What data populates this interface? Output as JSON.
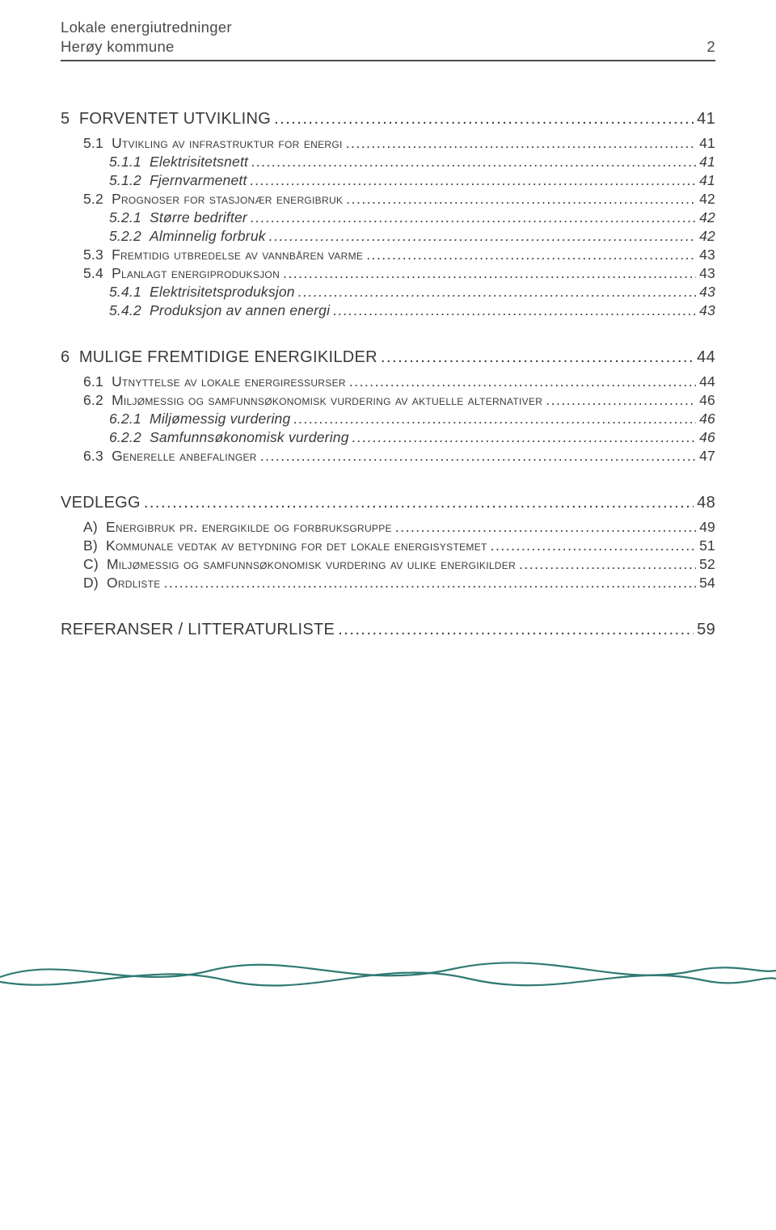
{
  "header": {
    "line1": "Lokale energiutredninger",
    "line2_left": "Herøy kommune",
    "line2_right": "2"
  },
  "colors": {
    "text": "#3a3a3a",
    "rule": "#4a4a4a",
    "wave": "#2f7a73",
    "background": "#ffffff"
  },
  "toc": [
    {
      "level": 1,
      "num": "5",
      "title": "FORVENTET UTVIKLING",
      "page": "41"
    },
    {
      "level": 2,
      "num": "5.1",
      "title_sc": "Utvikling av infrastruktur for energi",
      "page": "41"
    },
    {
      "level": 3,
      "num": "5.1.1",
      "title": "Elektrisitetsnett",
      "page": "41"
    },
    {
      "level": 3,
      "num": "5.1.2",
      "title": "Fjernvarmenett",
      "page": "41"
    },
    {
      "level": 2,
      "num": "5.2",
      "title_sc": "Prognoser for stasjonær energibruk",
      "page": "42"
    },
    {
      "level": 3,
      "num": "5.2.1",
      "title": "Større bedrifter",
      "page": "42"
    },
    {
      "level": 3,
      "num": "5.2.2",
      "title": "Alminnelig forbruk",
      "page": "42"
    },
    {
      "level": 2,
      "num": "5.3",
      "title_sc": "Fremtidig utbredelse av vannbåren varme",
      "page": "43"
    },
    {
      "level": 2,
      "num": "5.4",
      "title_sc": "Planlagt energiproduksjon",
      "page": "43"
    },
    {
      "level": 3,
      "num": "5.4.1",
      "title": "Elektrisitetsproduksjon",
      "page": "43"
    },
    {
      "level": 3,
      "num": "5.4.2",
      "title": "Produksjon av annen energi",
      "page": "43"
    },
    {
      "level": 1,
      "num": "6",
      "title": "MULIGE FREMTIDIGE ENERGIKILDER",
      "page": "44"
    },
    {
      "level": 2,
      "num": "6.1",
      "title_sc": "Utnyttelse av lokale energiressurser",
      "page": "44"
    },
    {
      "level": 2,
      "num": "6.2",
      "title_sc": "Miljømessig og samfunnsøkonomisk vurdering av aktuelle alternativer",
      "page": "46"
    },
    {
      "level": 3,
      "num": "6.2.1",
      "title": "Miljømessig vurdering",
      "page": "46"
    },
    {
      "level": 3,
      "num": "6.2.2",
      "title": "Samfunnsøkonomisk vurdering",
      "page": "46"
    },
    {
      "level": 2,
      "num": "6.3",
      "title_sc": "Generelle anbefalinger",
      "page": "47"
    },
    {
      "level": 1,
      "num": "",
      "title": "VEDLEGG",
      "page": "48"
    },
    {
      "level": "appendix",
      "num": "A)",
      "title_sc": "Energibruk pr. energikilde og forbruksgruppe",
      "page": "49"
    },
    {
      "level": "appendix",
      "num": "B)",
      "title_sc": "Kommunale vedtak av betydning for det lokale energisystemet",
      "page": "51"
    },
    {
      "level": "appendix",
      "num": "C)",
      "title_sc": "Miljømessig og samfunnsøkonomisk vurdering av ulike energikilder",
      "page": "52"
    },
    {
      "level": "appendix",
      "num": "D)",
      "title_sc": "Ordliste",
      "page": "54"
    },
    {
      "level": 1,
      "num": "",
      "title": "REFERANSER / LITTERATURLISTE",
      "page": "59"
    }
  ]
}
